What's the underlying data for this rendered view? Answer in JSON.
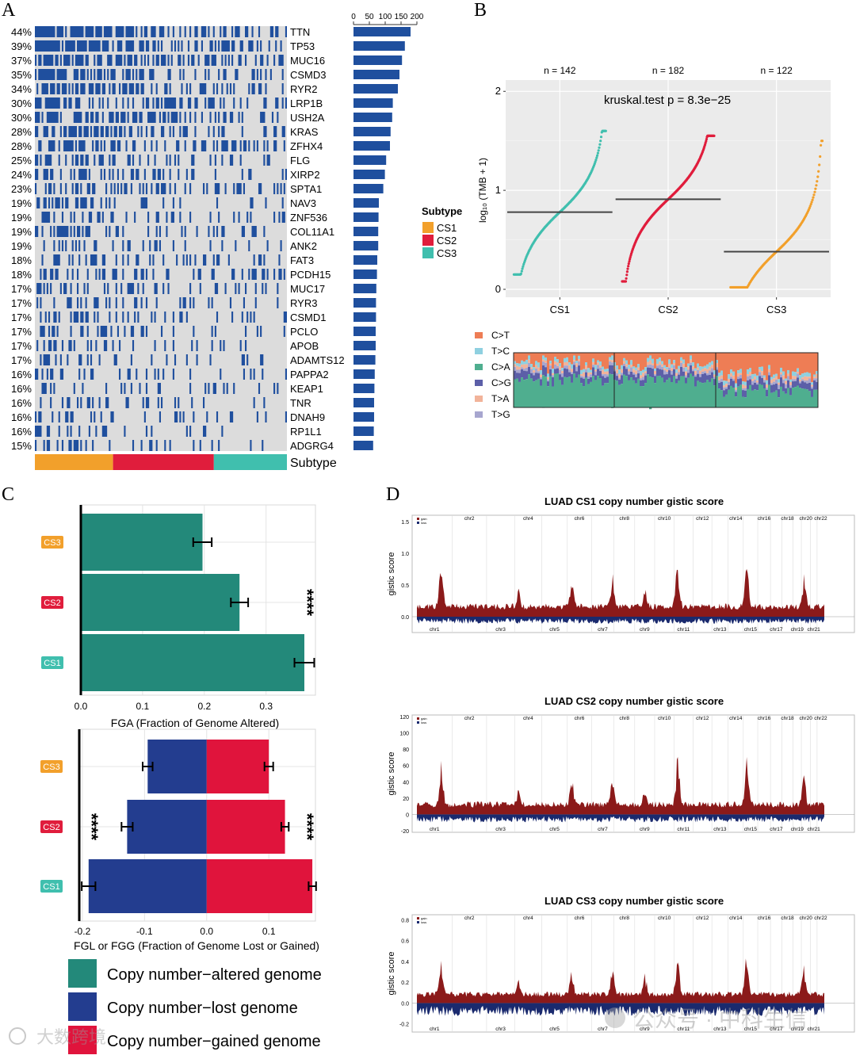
{
  "colors": {
    "mutation": "#1f4f9e",
    "nomut": "#dcdcdc",
    "cs1": "#f2a02b",
    "cs2": "#e01d3c",
    "cs3": "#40bfae",
    "teal": "#23897a",
    "navy": "#233d8f",
    "red": "#e0143c",
    "gain": "#8b1a1a",
    "loss": "#1a2a6e",
    "panel_bg": "#ebebeb",
    "sig_ct": "#ee7d55",
    "sig_tc": "#8fd0e0",
    "sig_ca": "#4fae8f",
    "sig_cg": "#5c5fa8",
    "sig_ta": "#f2b39a",
    "sig_tg": "#a7a6cf"
  },
  "panels": {
    "A": "A",
    "B": "B",
    "C": "C",
    "D": "D"
  },
  "panel_a": {
    "genes": [
      {
        "name": "TTN",
        "pct": "44%",
        "count": 180
      },
      {
        "name": "TP53",
        "pct": "39%",
        "count": 162
      },
      {
        "name": "MUC16",
        "pct": "37%",
        "count": 153
      },
      {
        "name": "CSMD3",
        "pct": "35%",
        "count": 145
      },
      {
        "name": "RYR2",
        "pct": "34%",
        "count": 140
      },
      {
        "name": "LRP1B",
        "pct": "30%",
        "count": 124
      },
      {
        "name": "USH2A",
        "pct": "30%",
        "count": 122
      },
      {
        "name": "KRAS",
        "pct": "28%",
        "count": 117
      },
      {
        "name": "ZFHX4",
        "pct": "28%",
        "count": 115
      },
      {
        "name": "FLG",
        "pct": "25%",
        "count": 103
      },
      {
        "name": "XIRP2",
        "pct": "24%",
        "count": 99
      },
      {
        "name": "SPTA1",
        "pct": "23%",
        "count": 94
      },
      {
        "name": "NAV3",
        "pct": "19%",
        "count": 80
      },
      {
        "name": "ZNF536",
        "pct": "19%",
        "count": 79
      },
      {
        "name": "COL11A1",
        "pct": "19%",
        "count": 78
      },
      {
        "name": "ANK2",
        "pct": "19%",
        "count": 78
      },
      {
        "name": "FAT3",
        "pct": "18%",
        "count": 75
      },
      {
        "name": "PCDH15",
        "pct": "18%",
        "count": 74
      },
      {
        "name": "MUC17",
        "pct": "17%",
        "count": 72
      },
      {
        "name": "RYR3",
        "pct": "17%",
        "count": 71
      },
      {
        "name": "CSMD1",
        "pct": "17%",
        "count": 71
      },
      {
        "name": "PCLO",
        "pct": "17%",
        "count": 70
      },
      {
        "name": "APOB",
        "pct": "17%",
        "count": 70
      },
      {
        "name": "ADAMTS12",
        "pct": "17%",
        "count": 69
      },
      {
        "name": "PAPPA2",
        "pct": "16%",
        "count": 67
      },
      {
        "name": "KEAP1",
        "pct": "16%",
        "count": 66
      },
      {
        "name": "TNR",
        "pct": "16%",
        "count": 65
      },
      {
        "name": "DNAH9",
        "pct": "16%",
        "count": 65
      },
      {
        "name": "RP1L1",
        "pct": "16%",
        "count": 64
      },
      {
        "name": "ADGRG4",
        "pct": "15%",
        "count": 62
      }
    ],
    "bar_axis_ticks": [
      0,
      50,
      100,
      150,
      200
    ],
    "bar_axis_max": 200,
    "subtype_label": "Subtype",
    "subtype_fractions": [
      0.31,
      0.4,
      0.29
    ]
  },
  "legend_subtype": {
    "title": "Subtype",
    "items": [
      "CS1",
      "CS2",
      "CS3"
    ]
  },
  "panel_b": {
    "ylabel": "log₁₀ (TMB + 1)",
    "test_label": "kruskal.test p = 8.3e−25",
    "groups": [
      {
        "name": "CS1",
        "n_label": "n = 142",
        "n": 142,
        "median": 0.78,
        "min": 0.15,
        "max": 1.6
      },
      {
        "name": "CS2",
        "n_label": "n = 182",
        "n": 182,
        "median": 0.91,
        "min": 0.08,
        "max": 1.55
      },
      {
        "name": "CS3",
        "n_label": "n = 122",
        "n": 122,
        "median": 0.38,
        "min": 0.02,
        "max": 1.5
      }
    ],
    "y_ticks": [
      0,
      1,
      2
    ],
    "ylim": [
      0,
      2.05
    ]
  },
  "signature_legend": [
    "C>T",
    "T>C",
    "C>A",
    "C>G",
    "T>A",
    "T>G"
  ],
  "panel_c_top": {
    "xlabel": "FGA (Fraction of Genome Altered)",
    "x_ticks": [
      "0.0",
      "0.1",
      "0.2",
      "0.3"
    ],
    "x_tick_values": [
      0,
      0.1,
      0.2,
      0.3
    ],
    "xlim": [
      0,
      0.38
    ],
    "bars": [
      {
        "label": "CS3",
        "value": 0.197,
        "err": 0.015
      },
      {
        "label": "CS2",
        "value": 0.257,
        "err": 0.014
      },
      {
        "label": "CS1",
        "value": 0.362,
        "err": 0.016
      }
    ],
    "signif": "****"
  },
  "panel_c_bottom": {
    "xlabel": "FGL or FGG (Fraction of Genome Lost or Gained)",
    "x_ticks": [
      "-0.2",
      "-0.1",
      "0.0",
      "0.1"
    ],
    "x_tick_values": [
      -0.2,
      -0.1,
      0,
      0.1
    ],
    "xlim": [
      -0.205,
      0.175
    ],
    "bars": [
      {
        "label": "CS3",
        "lost": -0.095,
        "lost_err": 0.008,
        "gained": 0.1,
        "gained_err": 0.007
      },
      {
        "label": "CS2",
        "lost": -0.128,
        "lost_err": 0.009,
        "gained": 0.126,
        "gained_err": 0.006
      },
      {
        "label": "CS1",
        "lost": -0.19,
        "lost_err": 0.011,
        "gained": 0.17,
        "gained_err": 0.006
      }
    ],
    "signif_left": "****",
    "signif_right": "****"
  },
  "legend_c": [
    "Copy number−altered genome",
    "Copy number−lost genome",
    "Copy number−gained genome"
  ],
  "panel_d": {
    "ylabel": "gistic score",
    "legend_small": [
      "gain",
      "loss"
    ],
    "chr_top": [
      "chr2",
      "chr4",
      "chr6",
      "chr8",
      "chr10",
      "chr12",
      "chr14",
      "chr16",
      "chr18",
      "chr20",
      "chr22"
    ],
    "chr_bottom": [
      "chr1",
      "chr3",
      "chr5",
      "chr7",
      "chr9",
      "chr11",
      "chr13",
      "chr15",
      "chr17",
      "chr19",
      "chr21"
    ],
    "plots": [
      {
        "title": "LUAD CS1 copy number gistic score",
        "y_ticks": [
          "1.5",
          "1.0",
          "0.5",
          "0.0"
        ],
        "y_values": [
          1.5,
          1.0,
          0.5,
          0.0
        ],
        "ylim": [
          -0.25,
          1.6
        ]
      },
      {
        "title": "LUAD CS2 copy number gistic score",
        "y_ticks": [
          "120",
          "100",
          "80",
          "60",
          "40",
          "20",
          "0",
          "-20"
        ],
        "y_values": [
          120,
          100,
          80,
          60,
          40,
          20,
          0,
          -20
        ],
        "ylim": [
          -22,
          122
        ]
      },
      {
        "title": "LUAD CS3 copy number gistic score",
        "y_ticks": [
          "0.8",
          "0.6",
          "0.4",
          "0.2",
          "0.0",
          "-0.2"
        ],
        "y_values": [
          0.8,
          0.6,
          0.4,
          0.2,
          0.0,
          -0.2
        ],
        "ylim": [
          -0.28,
          0.85
        ]
      }
    ]
  },
  "watermark": {
    "left": "大数跨境",
    "right": "公众号 · 中科生信"
  }
}
